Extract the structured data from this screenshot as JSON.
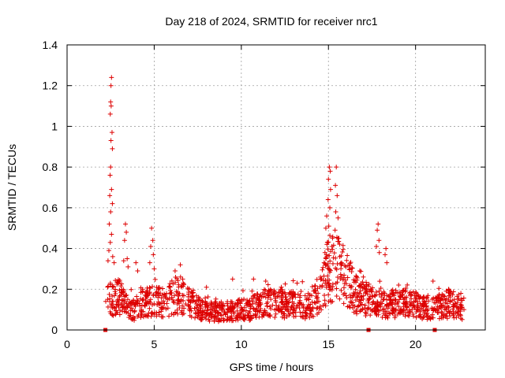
{
  "chart_data": {
    "type": "scatter",
    "title": "Day 218 of 2024, SRMTID for receiver nrc1",
    "xlabel": "GPS time / hours",
    "ylabel": "SRMTID / TECUs",
    "xlim": [
      0,
      24
    ],
    "ylim": [
      0,
      1.4
    ],
    "xticks": [
      0,
      5,
      10,
      15,
      20
    ],
    "xtick_labels": [
      "0",
      "5",
      "10",
      "15",
      "20"
    ],
    "yticks": [
      0,
      0.2,
      0.4,
      0.6,
      0.8,
      1.0,
      1.2,
      1.4
    ],
    "ytick_labels": [
      "0",
      "0.2",
      "0.4",
      "0.6",
      "0.8",
      "1",
      "1.2",
      "1.4"
    ],
    "grid": true,
    "marker": "+",
    "series_color": "#dd0000",
    "seed": 2182024,
    "baseline_profile": [
      {
        "x": 2.2,
        "y": 0.15
      },
      {
        "x": 3.0,
        "y": 0.16
      },
      {
        "x": 3.8,
        "y": 0.1
      },
      {
        "x": 4.3,
        "y": 0.14
      },
      {
        "x": 5.5,
        "y": 0.14
      },
      {
        "x": 6.5,
        "y": 0.17
      },
      {
        "x": 7.5,
        "y": 0.11
      },
      {
        "x": 8.5,
        "y": 0.09
      },
      {
        "x": 9.5,
        "y": 0.09
      },
      {
        "x": 10.3,
        "y": 0.1
      },
      {
        "x": 11.5,
        "y": 0.13
      },
      {
        "x": 12.5,
        "y": 0.13
      },
      {
        "x": 13.8,
        "y": 0.12
      },
      {
        "x": 14.5,
        "y": 0.16
      },
      {
        "x": 15.0,
        "y": 0.3
      },
      {
        "x": 15.6,
        "y": 0.3
      },
      {
        "x": 16.5,
        "y": 0.18
      },
      {
        "x": 17.2,
        "y": 0.15
      },
      {
        "x": 18.0,
        "y": 0.12
      },
      {
        "x": 19.0,
        "y": 0.13
      },
      {
        "x": 20.0,
        "y": 0.12
      },
      {
        "x": 21.0,
        "y": 0.11
      },
      {
        "x": 22.0,
        "y": 0.13
      },
      {
        "x": 22.8,
        "y": 0.1
      }
    ],
    "dense_range": [
      2.3,
      22.8
    ],
    "peak_points": [
      {
        "x": 2.55,
        "y": 1.24
      },
      {
        "x": 2.52,
        "y": 1.2
      },
      {
        "x": 2.5,
        "y": 1.12
      },
      {
        "x": 2.53,
        "y": 1.1
      },
      {
        "x": 2.48,
        "y": 1.06
      },
      {
        "x": 2.58,
        "y": 0.97
      },
      {
        "x": 2.52,
        "y": 0.93
      },
      {
        "x": 2.6,
        "y": 0.89
      },
      {
        "x": 2.5,
        "y": 0.8
      },
      {
        "x": 2.47,
        "y": 0.76
      },
      {
        "x": 2.55,
        "y": 0.69
      },
      {
        "x": 2.45,
        "y": 0.66
      },
      {
        "x": 2.6,
        "y": 0.62
      },
      {
        "x": 2.5,
        "y": 0.58
      },
      {
        "x": 2.42,
        "y": 0.52
      },
      {
        "x": 2.55,
        "y": 0.47
      },
      {
        "x": 2.48,
        "y": 0.43
      },
      {
        "x": 2.4,
        "y": 0.39
      },
      {
        "x": 2.62,
        "y": 0.36
      },
      {
        "x": 2.35,
        "y": 0.34
      },
      {
        "x": 2.7,
        "y": 0.33
      },
      {
        "x": 2.22,
        "y": 0.14
      },
      {
        "x": 3.35,
        "y": 0.52
      },
      {
        "x": 3.4,
        "y": 0.48
      },
      {
        "x": 3.3,
        "y": 0.44
      },
      {
        "x": 3.45,
        "y": 0.35
      },
      {
        "x": 3.25,
        "y": 0.34
      },
      {
        "x": 3.5,
        "y": 0.31
      },
      {
        "x": 4.85,
        "y": 0.5
      },
      {
        "x": 4.92,
        "y": 0.44
      },
      {
        "x": 4.8,
        "y": 0.41
      },
      {
        "x": 4.95,
        "y": 0.37
      },
      {
        "x": 4.75,
        "y": 0.33
      },
      {
        "x": 5.0,
        "y": 0.3
      },
      {
        "x": 3.95,
        "y": 0.33
      },
      {
        "x": 4.05,
        "y": 0.29
      },
      {
        "x": 6.5,
        "y": 0.32
      },
      {
        "x": 6.2,
        "y": 0.29
      },
      {
        "x": 8.0,
        "y": 0.21
      },
      {
        "x": 9.5,
        "y": 0.25
      },
      {
        "x": 10.7,
        "y": 0.25
      },
      {
        "x": 11.4,
        "y": 0.24
      },
      {
        "x": 13.2,
        "y": 0.23
      },
      {
        "x": 15.05,
        "y": 0.8
      },
      {
        "x": 15.1,
        "y": 0.78
      },
      {
        "x": 15.0,
        "y": 0.74
      },
      {
        "x": 15.45,
        "y": 0.8
      },
      {
        "x": 15.4,
        "y": 0.71
      },
      {
        "x": 15.12,
        "y": 0.69
      },
      {
        "x": 14.98,
        "y": 0.64
      },
      {
        "x": 15.5,
        "y": 0.66
      },
      {
        "x": 15.08,
        "y": 0.6
      },
      {
        "x": 15.42,
        "y": 0.58
      },
      {
        "x": 14.9,
        "y": 0.56
      },
      {
        "x": 15.55,
        "y": 0.55
      },
      {
        "x": 15.02,
        "y": 0.51
      },
      {
        "x": 14.85,
        "y": 0.5
      },
      {
        "x": 15.38,
        "y": 0.49
      },
      {
        "x": 15.6,
        "y": 0.45
      },
      {
        "x": 14.95,
        "y": 0.43
      },
      {
        "x": 15.2,
        "y": 0.41
      },
      {
        "x": 14.8,
        "y": 0.38
      },
      {
        "x": 15.65,
        "y": 0.36
      },
      {
        "x": 14.75,
        "y": 0.33
      },
      {
        "x": 15.75,
        "y": 0.33
      },
      {
        "x": 16.0,
        "y": 0.31
      },
      {
        "x": 17.85,
        "y": 0.52
      },
      {
        "x": 17.8,
        "y": 0.49
      },
      {
        "x": 17.9,
        "y": 0.44
      },
      {
        "x": 17.75,
        "y": 0.41
      },
      {
        "x": 17.92,
        "y": 0.38
      },
      {
        "x": 18.3,
        "y": 0.4
      },
      {
        "x": 18.25,
        "y": 0.37
      },
      {
        "x": 18.35,
        "y": 0.33
      },
      {
        "x": 16.8,
        "y": 0.29
      },
      {
        "x": 17.0,
        "y": 0.26
      },
      {
        "x": 21.0,
        "y": 0.24
      },
      {
        "x": 21.9,
        "y": 0.2
      },
      {
        "x": 22.6,
        "y": 0.18
      }
    ],
    "axis_markers": [
      2.2,
      17.3,
      21.1
    ]
  }
}
